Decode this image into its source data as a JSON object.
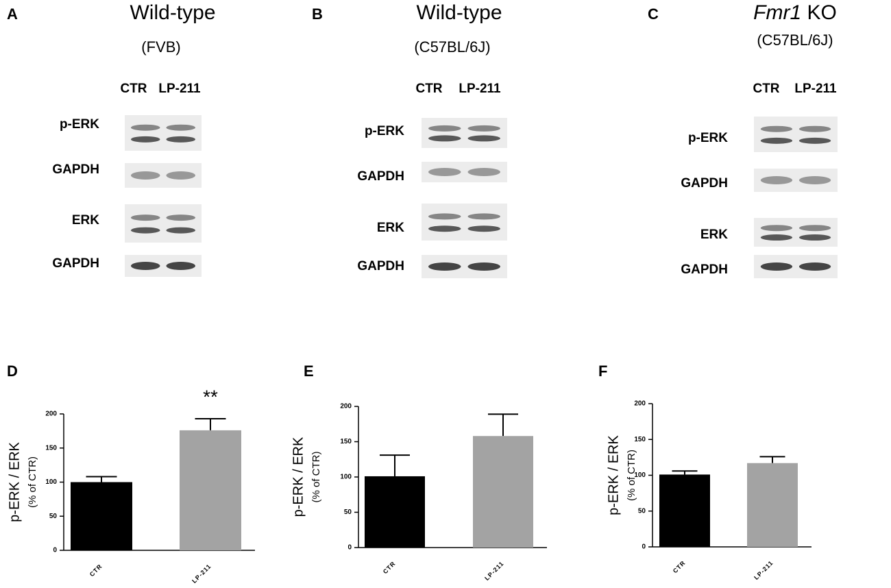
{
  "blots": [
    {
      "letter": "A",
      "title": "Wild-type",
      "subtitle": "(FVB)",
      "columns": [
        "CTR",
        "LP-211"
      ],
      "rows": [
        "p-ERK",
        "GAPDH",
        "ERK",
        "GAPDH"
      ]
    },
    {
      "letter": "B",
      "title": "Wild-type",
      "subtitle": "(C57BL/6J)",
      "columns": [
        "CTR",
        "LP-211"
      ],
      "rows": [
        "p-ERK",
        "GAPDH",
        "ERK",
        "GAPDH"
      ]
    },
    {
      "letter": "C",
      "title_italic": "Fmr1",
      "title": "KO",
      "subtitle": "(C57BL/6J)",
      "columns": [
        "CTR",
        "LP-211"
      ],
      "rows": [
        "p-ERK",
        "GAPDH",
        "ERK",
        "GAPDH"
      ]
    }
  ],
  "chart_data": [
    {
      "type": "bar",
      "label": "D",
      "y_label": "p-ERK / ERK",
      "y_sublabel": "(% of CTR)",
      "categories": [
        "CTR",
        "LP-211"
      ],
      "series": [
        {
          "values": [
            100,
            176
          ],
          "errors": [
            8,
            17
          ]
        }
      ],
      "colors": [
        "#000000",
        "#a3a3a3"
      ],
      "annotation": "**",
      "ylim": [
        0,
        200
      ],
      "yticks": [
        0,
        50,
        100,
        150,
        200
      ]
    },
    {
      "type": "bar",
      "label": "E",
      "y_label": "p-ERK / ERK",
      "y_sublabel": "(% of CTR)",
      "categories": [
        "CTR",
        "LP-211"
      ],
      "series": [
        {
          "values": [
            101,
            158
          ],
          "errors": [
            30,
            31
          ]
        }
      ],
      "colors": [
        "#000000",
        "#a3a3a3"
      ],
      "ylim": [
        0,
        200
      ],
      "yticks": [
        0,
        50,
        100,
        150,
        200
      ]
    },
    {
      "type": "bar",
      "label": "F",
      "y_label": "p-ERK / ERK",
      "y_sublabel": "(% of CTR)",
      "categories": [
        "CTR",
        "LP-211"
      ],
      "series": [
        {
          "values": [
            101,
            117
          ],
          "errors": [
            5,
            9
          ]
        }
      ],
      "colors": [
        "#000000",
        "#a3a3a3"
      ],
      "ylim": [
        0,
        200
      ],
      "yticks": [
        0,
        50,
        100,
        150,
        200
      ]
    }
  ]
}
